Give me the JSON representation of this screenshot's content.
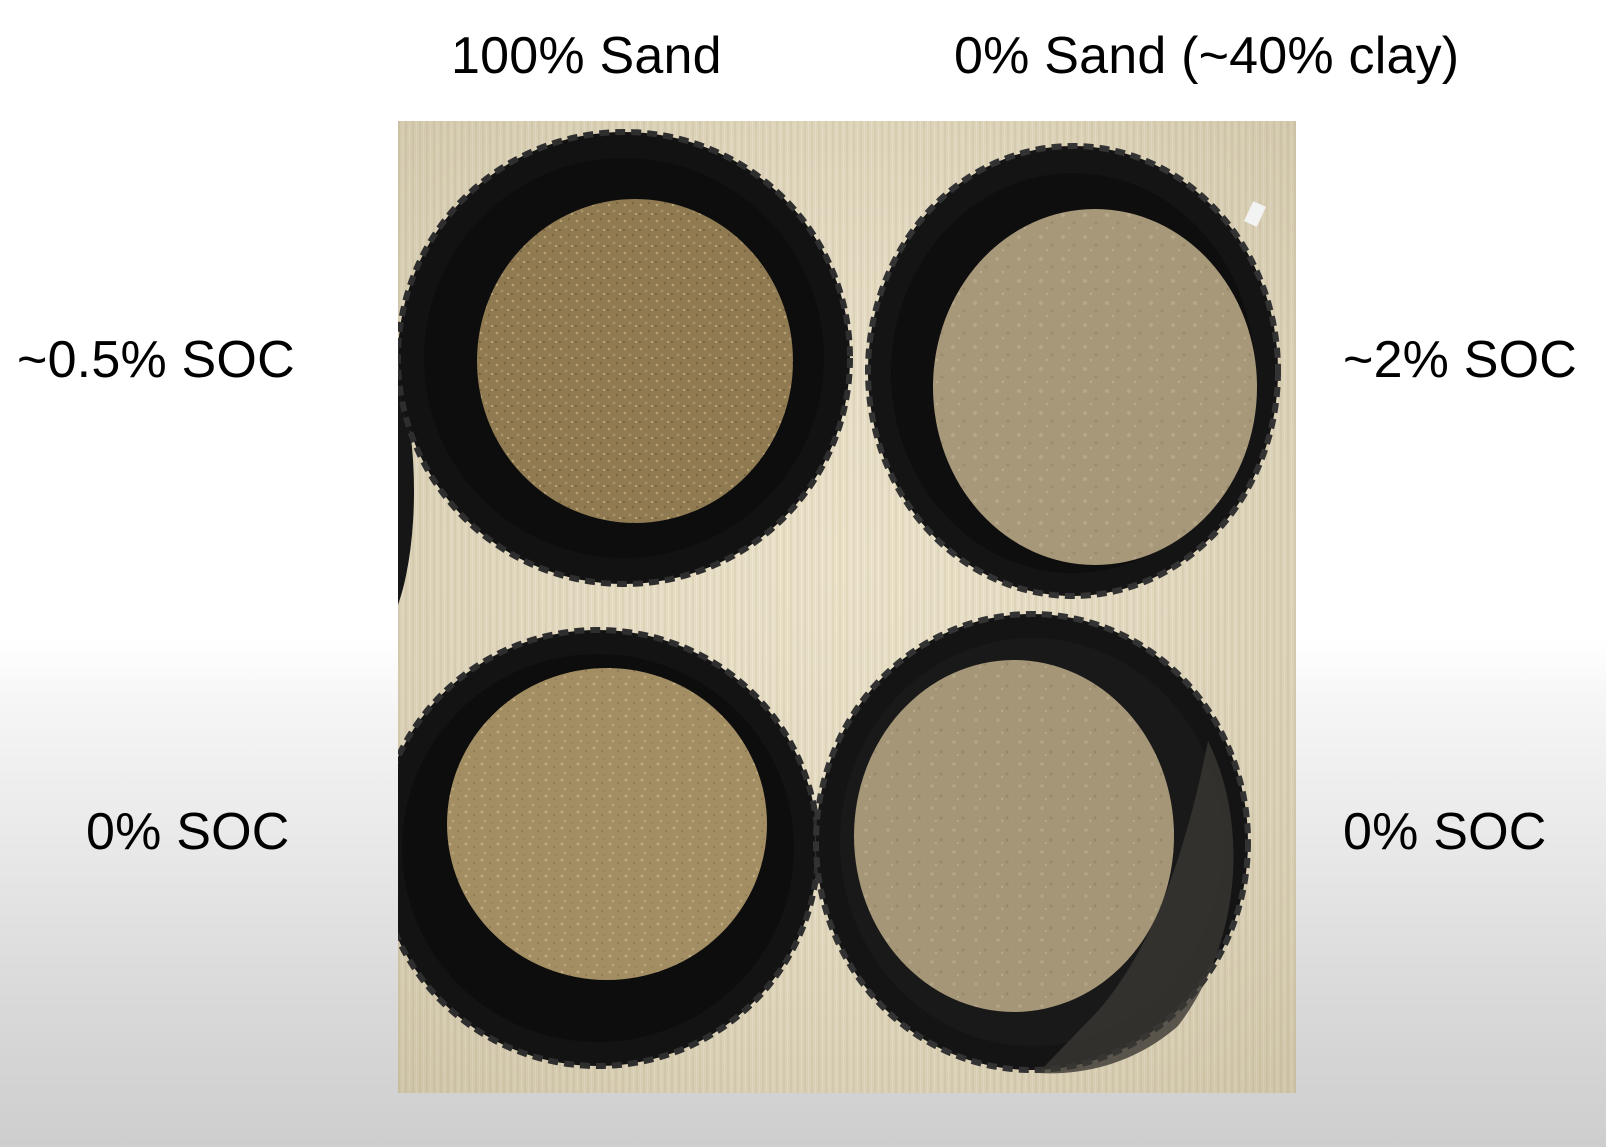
{
  "columns": {
    "left_heading": "100% Sand",
    "right_heading": "0% Sand (~40% clay)"
  },
  "rows": {
    "top_left_label": "~0.5% SOC",
    "top_right_label": "~2% SOC",
    "bottom_left_label": "0% SOC",
    "bottom_right_label": "0% SOC"
  },
  "photo": {
    "subject": "four black pans of soil samples on a beige surface",
    "samples": [
      {
        "position": "top-left",
        "soil_color": "#8a7348"
      },
      {
        "position": "top-right",
        "soil_color": "#a8987a"
      },
      {
        "position": "bottom-left",
        "soil_color": "#a08a5e"
      },
      {
        "position": "bottom-right",
        "soil_color": "#a59678"
      }
    ],
    "background_color": "#e6dcc0",
    "pan_color": "#161616"
  }
}
